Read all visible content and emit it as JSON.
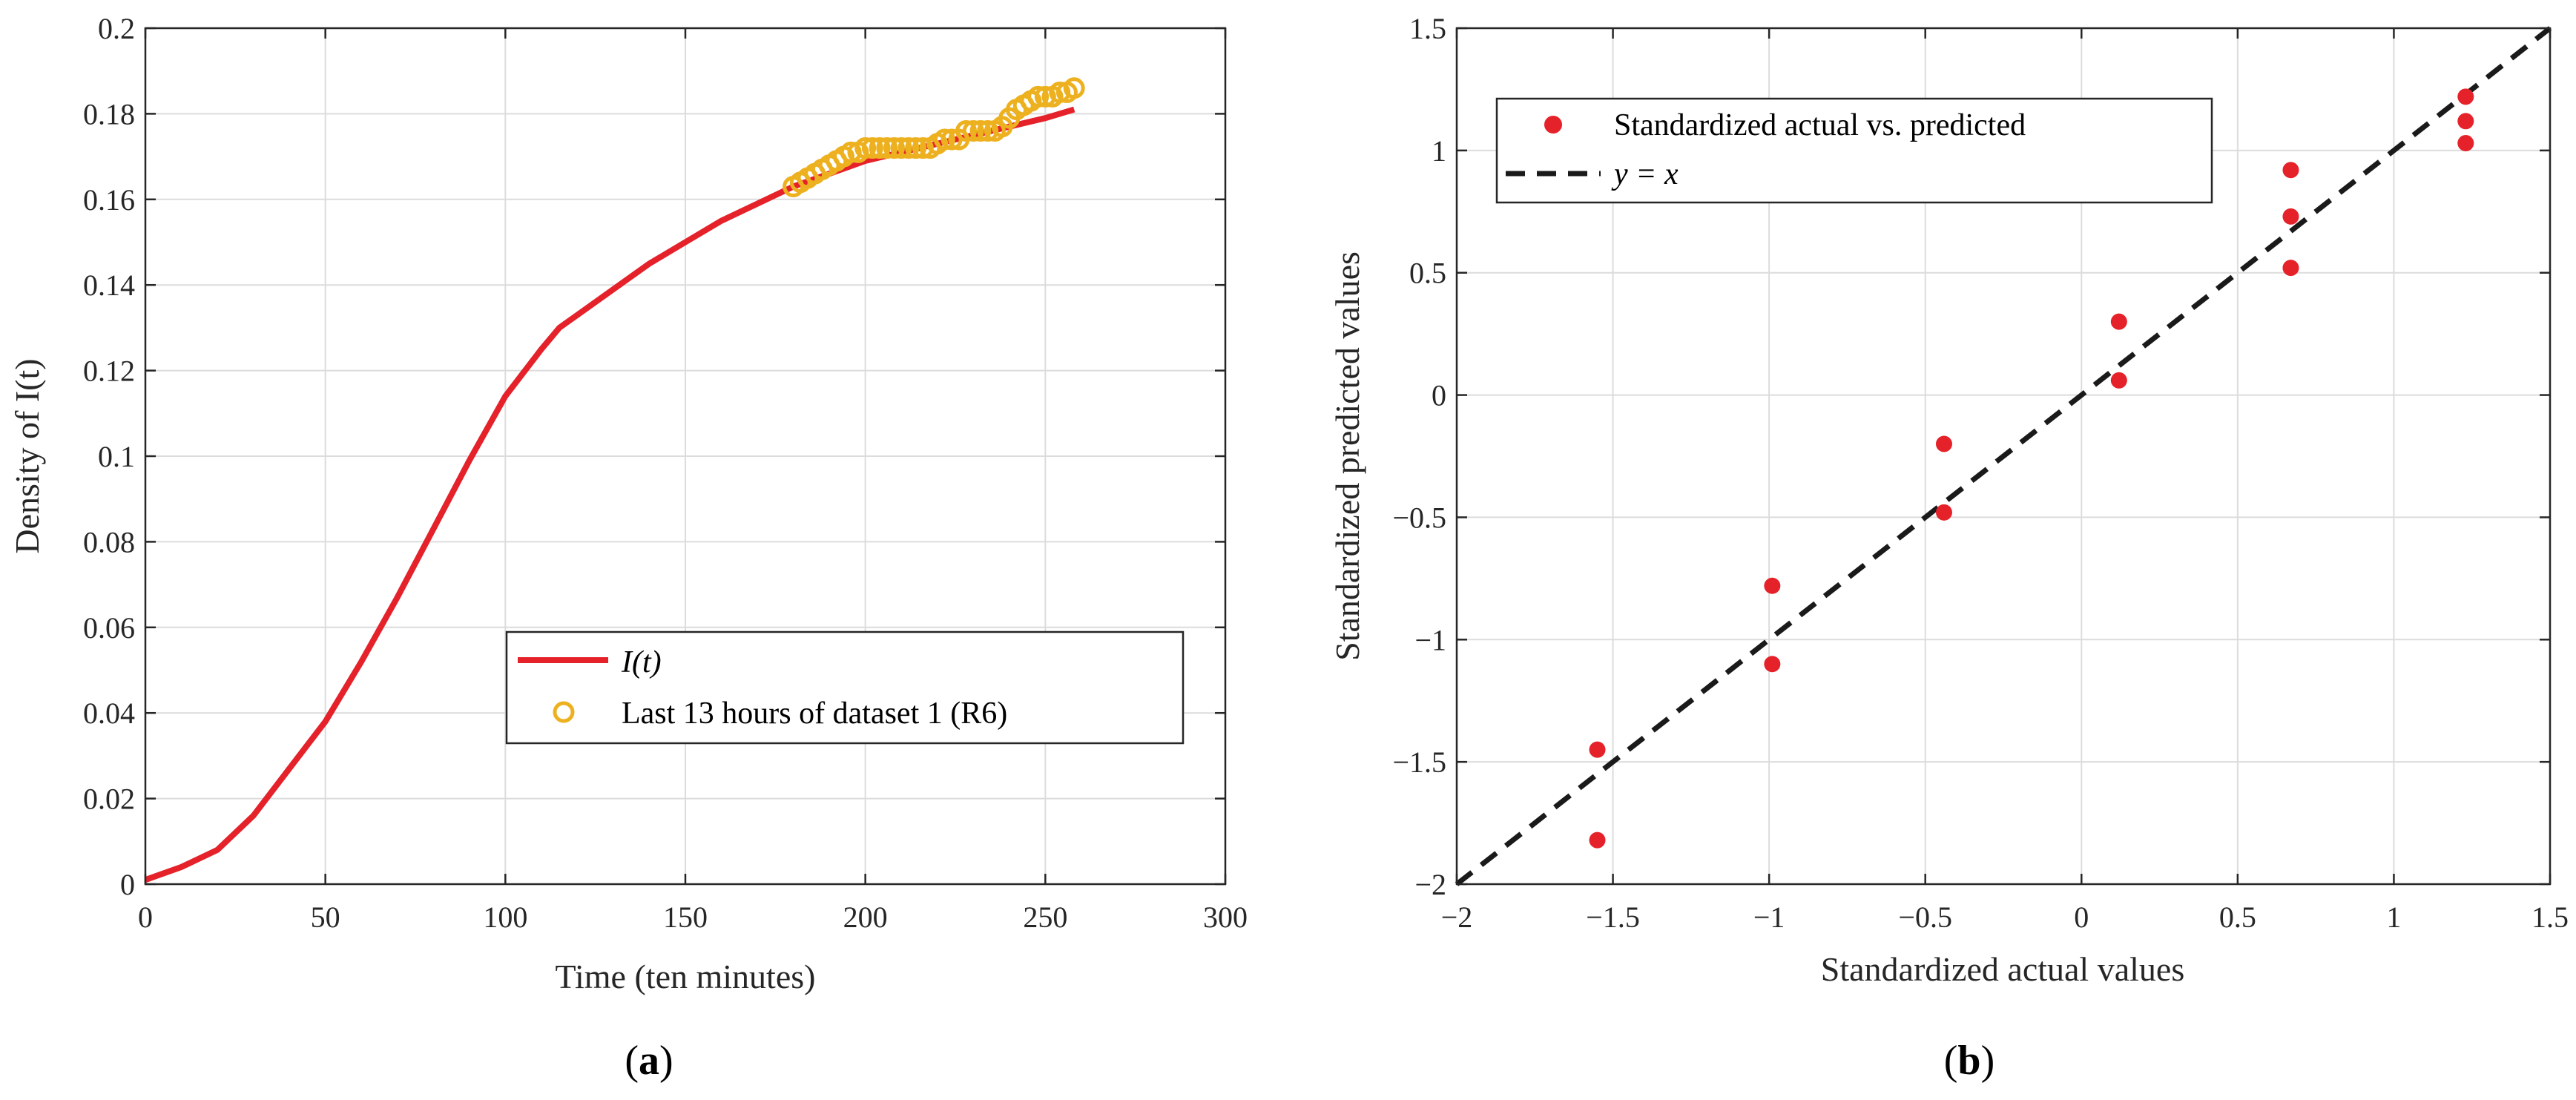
{
  "charts": [
    {
      "type": "line",
      "panel_label": "a",
      "xlabel": "Time (ten minutes)",
      "ylabel": "Density of I(t)",
      "xlim": [
        0,
        300
      ],
      "ylim": [
        0,
        0.2
      ],
      "xticks": [
        0,
        50,
        100,
        150,
        200,
        250,
        300
      ],
      "yticks": [
        0,
        0.02,
        0.04,
        0.06,
        0.08,
        0.1,
        0.12,
        0.14,
        0.16,
        0.18,
        0.2
      ],
      "xtick_labels": [
        "0",
        "50",
        "100",
        "150",
        "200",
        "250",
        "300"
      ],
      "ytick_labels": [
        "0",
        "0.02",
        "0.04",
        "0.06",
        "0.08",
        "0.1",
        "0.12",
        "0.14",
        "0.16",
        "0.18",
        "0.2"
      ],
      "legend": [
        "I(t)",
        "Last 13 hours of dataset 1 (R6)"
      ],
      "series": [
        {
          "name": "I(t)",
          "color": "#e5212a",
          "x": [
            0,
            10,
            20,
            30,
            40,
            50,
            60,
            70,
            80,
            90,
            100,
            110,
            115,
            120,
            130,
            140,
            150,
            160,
            170,
            180,
            190,
            200,
            210,
            220,
            230,
            240,
            250,
            258
          ],
          "y": [
            0.001,
            0.004,
            0.008,
            0.016,
            0.027,
            0.038,
            0.052,
            0.067,
            0.083,
            0.099,
            0.114,
            0.125,
            0.13,
            0.133,
            0.139,
            0.145,
            0.15,
            0.155,
            0.159,
            0.163,
            0.166,
            0.169,
            0.171,
            0.173,
            0.175,
            0.177,
            0.179,
            0.181
          ]
        },
        {
          "name": "Last 13 hours of dataset 1 (R6)",
          "color": "#edb120",
          "x": [
            180,
            182,
            184,
            186,
            188,
            190,
            192,
            194,
            196,
            198,
            200,
            202,
            204,
            206,
            208,
            210,
            212,
            214,
            216,
            218,
            220,
            222,
            224,
            226,
            228,
            230,
            232,
            234,
            236,
            238,
            240,
            242,
            244,
            246,
            248,
            250,
            252,
            254,
            256,
            258
          ],
          "y": [
            0.163,
            0.164,
            0.165,
            0.166,
            0.167,
            0.168,
            0.169,
            0.17,
            0.171,
            0.171,
            0.172,
            0.172,
            0.172,
            0.172,
            0.172,
            0.172,
            0.172,
            0.172,
            0.172,
            0.172,
            0.173,
            0.174,
            0.174,
            0.174,
            0.176,
            0.176,
            0.176,
            0.176,
            0.176,
            0.177,
            0.179,
            0.181,
            0.182,
            0.183,
            0.184,
            0.184,
            0.184,
            0.185,
            0.185,
            0.186
          ]
        }
      ]
    },
    {
      "type": "scatter",
      "panel_label": "b",
      "xlabel": "Standardized actual values",
      "ylabel": "Standardized predicted values",
      "xlim": [
        -2,
        1.5
      ],
      "ylim": [
        -2,
        1.5
      ],
      "xticks": [
        -2,
        -1.5,
        -1,
        -0.5,
        0,
        0.5,
        1,
        1.5
      ],
      "yticks": [
        -2,
        -1.5,
        -1,
        -0.5,
        0,
        0.5,
        1,
        1.5
      ],
      "xtick_labels": [
        "−2",
        "−1.5",
        "−1",
        "−0.5",
        "0",
        "0.5",
        "1",
        "1.5"
      ],
      "ytick_labels": [
        "−2",
        "−1.5",
        "−1",
        "−0.5",
        "0",
        "0.5",
        "1",
        "1.5"
      ],
      "legend": [
        "Standardized actual vs. predicted",
        "y = x"
      ],
      "series": [
        {
          "name": "Standardized actual vs. predicted",
          "color": "#e5212a",
          "x": [
            -1.55,
            -1.55,
            -0.99,
            -0.99,
            -0.44,
            -0.44,
            0.12,
            0.12,
            0.67,
            0.67,
            0.67,
            1.23,
            1.23,
            1.23
          ],
          "y": [
            -1.45,
            -1.82,
            -0.78,
            -1.1,
            -0.2,
            -0.48,
            0.3,
            0.06,
            0.92,
            0.73,
            0.52,
            1.22,
            1.12,
            1.03
          ]
        },
        {
          "name": "y = x",
          "color": "#1a1a1a",
          "x": [
            -2,
            1.5
          ],
          "y": [
            -2,
            1.5
          ]
        }
      ]
    }
  ]
}
